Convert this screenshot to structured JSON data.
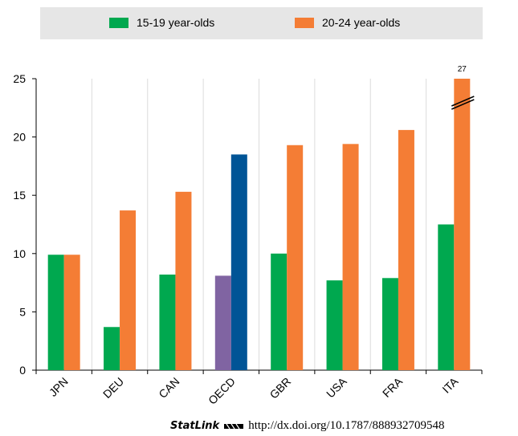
{
  "chart_data": {
    "type": "bar",
    "categories": [
      "JPN",
      "DEU",
      "CAN",
      "OECD",
      "GBR",
      "USA",
      "FRA",
      "ITA"
    ],
    "series": [
      {
        "name": "15-19 year-olds",
        "values": [
          9.9,
          3.7,
          8.2,
          8.1,
          10.0,
          7.7,
          7.9,
          12.5
        ]
      },
      {
        "name": "20-24 year-olds",
        "values": [
          9.9,
          13.7,
          15.3,
          18.5,
          19.3,
          19.4,
          20.6,
          27
        ]
      }
    ],
    "highlight": {
      "category": "OECD",
      "colors": [
        "#8064a2",
        "#005496"
      ]
    },
    "colors": [
      "#00a84f",
      "#f47d35"
    ],
    "ylim": [
      0,
      25
    ],
    "yticks": [
      0,
      5,
      10,
      15,
      20,
      25
    ],
    "truncated_label": "27",
    "grid": "vertical",
    "legend_position": "top",
    "title": "",
    "xlabel": "",
    "ylabel": ""
  },
  "statlink": {
    "brand": "StatLink",
    "url": "http://dx.doi.org/10.1787/888932709548"
  }
}
